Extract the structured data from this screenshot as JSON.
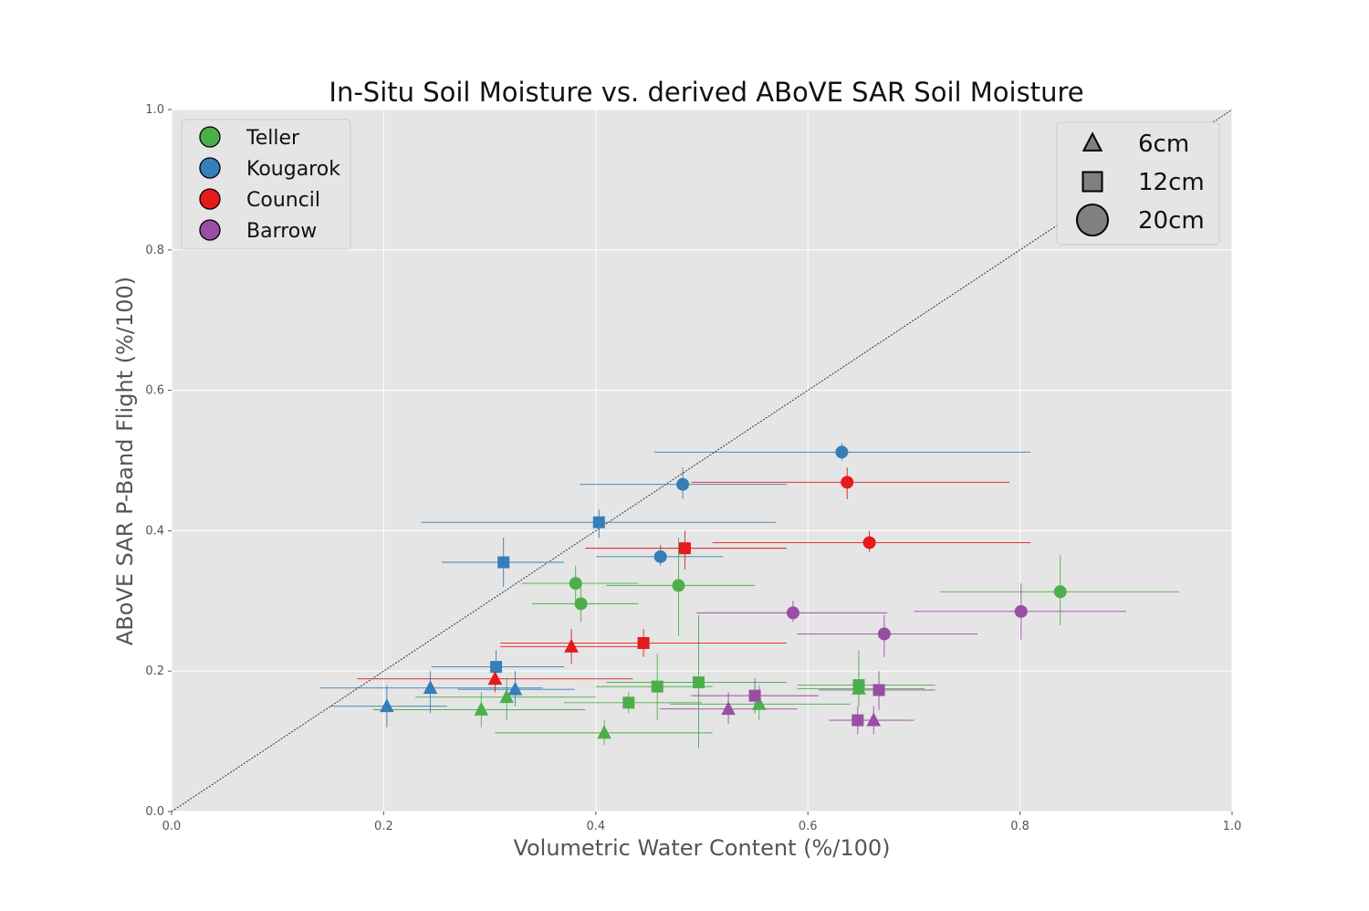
{
  "chart_data": {
    "type": "scatter",
    "title": "In-Situ Soil Moisture vs. derived ABoVE SAR Soil Moisture",
    "xlabel": "Volumetric Water Content (%/100)",
    "ylabel": "ABoVE SAR P-Band Flight (%/100)",
    "xlim": [
      0.0,
      1.0
    ],
    "ylim": [
      0.0,
      1.0
    ],
    "xticks": [
      "0.0",
      "0.2",
      "0.4",
      "0.6",
      "0.8",
      "1.0"
    ],
    "yticks": [
      "0.0",
      "0.2",
      "0.4",
      "0.6",
      "0.8",
      "1.0"
    ],
    "grid": true,
    "one_to_one_line": true,
    "site_legend_position": "top-left",
    "depth_legend_position": "top-right",
    "sites": [
      {
        "name": "Teller",
        "color": "#4daf4a"
      },
      {
        "name": "Kougarok",
        "color": "#377eb8"
      },
      {
        "name": "Council",
        "color": "#e41a1c"
      },
      {
        "name": "Barrow",
        "color": "#984ea3"
      }
    ],
    "depths": [
      {
        "label": "6cm",
        "marker": "triangle"
      },
      {
        "label": "12cm",
        "marker": "square"
      },
      {
        "label": "20cm",
        "marker": "circle"
      }
    ],
    "series": [
      {
        "name": "Teller",
        "points": [
          {
            "depth": "6cm",
            "x": 0.292,
            "y": 0.145,
            "xerr": [
              0.19,
              0.39
            ],
            "yerr": [
              0.12,
              0.17
            ]
          },
          {
            "depth": "6cm",
            "x": 0.316,
            "y": 0.163,
            "xerr": [
              0.23,
              0.4
            ],
            "yerr": [
              0.13,
              0.19
            ]
          },
          {
            "depth": "6cm",
            "x": 0.408,
            "y": 0.112,
            "xerr": [
              0.305,
              0.51
            ],
            "yerr": [
              0.095,
              0.13
            ]
          },
          {
            "depth": "6cm",
            "x": 0.554,
            "y": 0.153,
            "xerr": [
              0.47,
              0.64
            ],
            "yerr": [
              0.13,
              0.18
            ]
          },
          {
            "depth": "6cm",
            "x": 0.648,
            "y": 0.175,
            "xerr": [
              0.59,
              0.71
            ],
            "yerr": [
              0.15,
              0.2
            ]
          },
          {
            "depth": "12cm",
            "x": 0.431,
            "y": 0.155,
            "xerr": [
              0.37,
              0.5
            ],
            "yerr": [
              0.14,
              0.17
            ]
          },
          {
            "depth": "12cm",
            "x": 0.458,
            "y": 0.178,
            "xerr": [
              0.4,
              0.51
            ],
            "yerr": [
              0.13,
              0.225
            ]
          },
          {
            "depth": "12cm",
            "x": 0.497,
            "y": 0.184,
            "xerr": [
              0.41,
              0.58
            ],
            "yerr": [
              0.09,
              0.28
            ]
          },
          {
            "depth": "12cm",
            "x": 0.648,
            "y": 0.18,
            "xerr": [
              0.59,
              0.72
            ],
            "yerr": [
              0.15,
              0.23
            ]
          },
          {
            "depth": "20cm",
            "x": 0.381,
            "y": 0.325,
            "xerr": [
              0.33,
              0.44
            ],
            "yerr": [
              0.3,
              0.35
            ]
          },
          {
            "depth": "20cm",
            "x": 0.386,
            "y": 0.296,
            "xerr": [
              0.34,
              0.44
            ],
            "yerr": [
              0.27,
              0.32
            ]
          },
          {
            "depth": "20cm",
            "x": 0.478,
            "y": 0.322,
            "xerr": [
              0.41,
              0.55
            ],
            "yerr": [
              0.25,
              0.39
            ]
          },
          {
            "depth": "20cm",
            "x": 0.838,
            "y": 0.313,
            "xerr": [
              0.725,
              0.95
            ],
            "yerr": [
              0.265,
              0.365
            ]
          }
        ]
      },
      {
        "name": "Kougarok",
        "points": [
          {
            "depth": "6cm",
            "x": 0.203,
            "y": 0.15,
            "xerr": [
              0.15,
              0.26
            ],
            "yerr": [
              0.12,
              0.18
            ]
          },
          {
            "depth": "6cm",
            "x": 0.244,
            "y": 0.176,
            "xerr": [
              0.14,
              0.35
            ],
            "yerr": [
              0.14,
              0.2
            ]
          },
          {
            "depth": "6cm",
            "x": 0.324,
            "y": 0.174,
            "xerr": [
              0.27,
              0.38
            ],
            "yerr": [
              0.15,
              0.2
            ]
          },
          {
            "depth": "12cm",
            "x": 0.306,
            "y": 0.206,
            "xerr": [
              0.245,
              0.37
            ],
            "yerr": [
              0.18,
              0.23
            ]
          },
          {
            "depth": "12cm",
            "x": 0.313,
            "y": 0.355,
            "xerr": [
              0.255,
              0.37
            ],
            "yerr": [
              0.32,
              0.39
            ]
          },
          {
            "depth": "12cm",
            "x": 0.403,
            "y": 0.412,
            "xerr": [
              0.235,
              0.57
            ],
            "yerr": [
              0.39,
              0.43
            ]
          },
          {
            "depth": "20cm",
            "x": 0.461,
            "y": 0.363,
            "xerr": [
              0.4,
              0.52
            ],
            "yerr": [
              0.35,
              0.38
            ]
          },
          {
            "depth": "20cm",
            "x": 0.482,
            "y": 0.466,
            "xerr": [
              0.385,
              0.58
            ],
            "yerr": [
              0.445,
              0.49
            ]
          },
          {
            "depth": "20cm",
            "x": 0.632,
            "y": 0.512,
            "xerr": [
              0.455,
              0.81
            ],
            "yerr": [
              0.5,
              0.525
            ]
          }
        ]
      },
      {
        "name": "Council",
        "points": [
          {
            "depth": "6cm",
            "x": 0.305,
            "y": 0.189,
            "xerr": [
              0.175,
              0.435
            ],
            "yerr": [
              0.17,
              0.21
            ]
          },
          {
            "depth": "6cm",
            "x": 0.377,
            "y": 0.235,
            "xerr": [
              0.31,
              0.44
            ],
            "yerr": [
              0.21,
              0.26
            ]
          },
          {
            "depth": "12cm",
            "x": 0.445,
            "y": 0.24,
            "xerr": [
              0.31,
              0.58
            ],
            "yerr": [
              0.22,
              0.26
            ]
          },
          {
            "depth": "12cm",
            "x": 0.484,
            "y": 0.375,
            "xerr": [
              0.39,
              0.58
            ],
            "yerr": [
              0.345,
              0.4
            ]
          },
          {
            "depth": "20cm",
            "x": 0.637,
            "y": 0.469,
            "xerr": [
              0.49,
              0.79
            ],
            "yerr": [
              0.445,
              0.49
            ]
          },
          {
            "depth": "20cm",
            "x": 0.658,
            "y": 0.383,
            "xerr": [
              0.51,
              0.81
            ],
            "yerr": [
              0.37,
              0.4
            ]
          }
        ]
      },
      {
        "name": "Barrow",
        "points": [
          {
            "depth": "6cm",
            "x": 0.525,
            "y": 0.146,
            "xerr": [
              0.46,
              0.59
            ],
            "yerr": [
              0.125,
              0.17
            ]
          },
          {
            "depth": "6cm",
            "x": 0.662,
            "y": 0.13,
            "xerr": [
              0.62,
              0.7
            ],
            "yerr": [
              0.11,
              0.15
            ]
          },
          {
            "depth": "12cm",
            "x": 0.55,
            "y": 0.165,
            "xerr": [
              0.49,
              0.61
            ],
            "yerr": [
              0.14,
              0.19
            ]
          },
          {
            "depth": "12cm",
            "x": 0.647,
            "y": 0.13,
            "xerr": [
              0.62,
              0.69
            ],
            "yerr": [
              0.11,
              0.15
            ]
          },
          {
            "depth": "12cm",
            "x": 0.667,
            "y": 0.173,
            "xerr": [
              0.61,
              0.72
            ],
            "yerr": [
              0.145,
              0.2
            ]
          },
          {
            "depth": "20cm",
            "x": 0.586,
            "y": 0.283,
            "xerr": [
              0.495,
              0.675
            ],
            "yerr": [
              0.27,
              0.3
            ]
          },
          {
            "depth": "20cm",
            "x": 0.672,
            "y": 0.253,
            "xerr": [
              0.59,
              0.76
            ],
            "yerr": [
              0.22,
              0.28
            ]
          },
          {
            "depth": "20cm",
            "x": 0.801,
            "y": 0.285,
            "xerr": [
              0.7,
              0.9
            ],
            "yerr": [
              0.245,
              0.325
            ]
          }
        ]
      }
    ]
  }
}
